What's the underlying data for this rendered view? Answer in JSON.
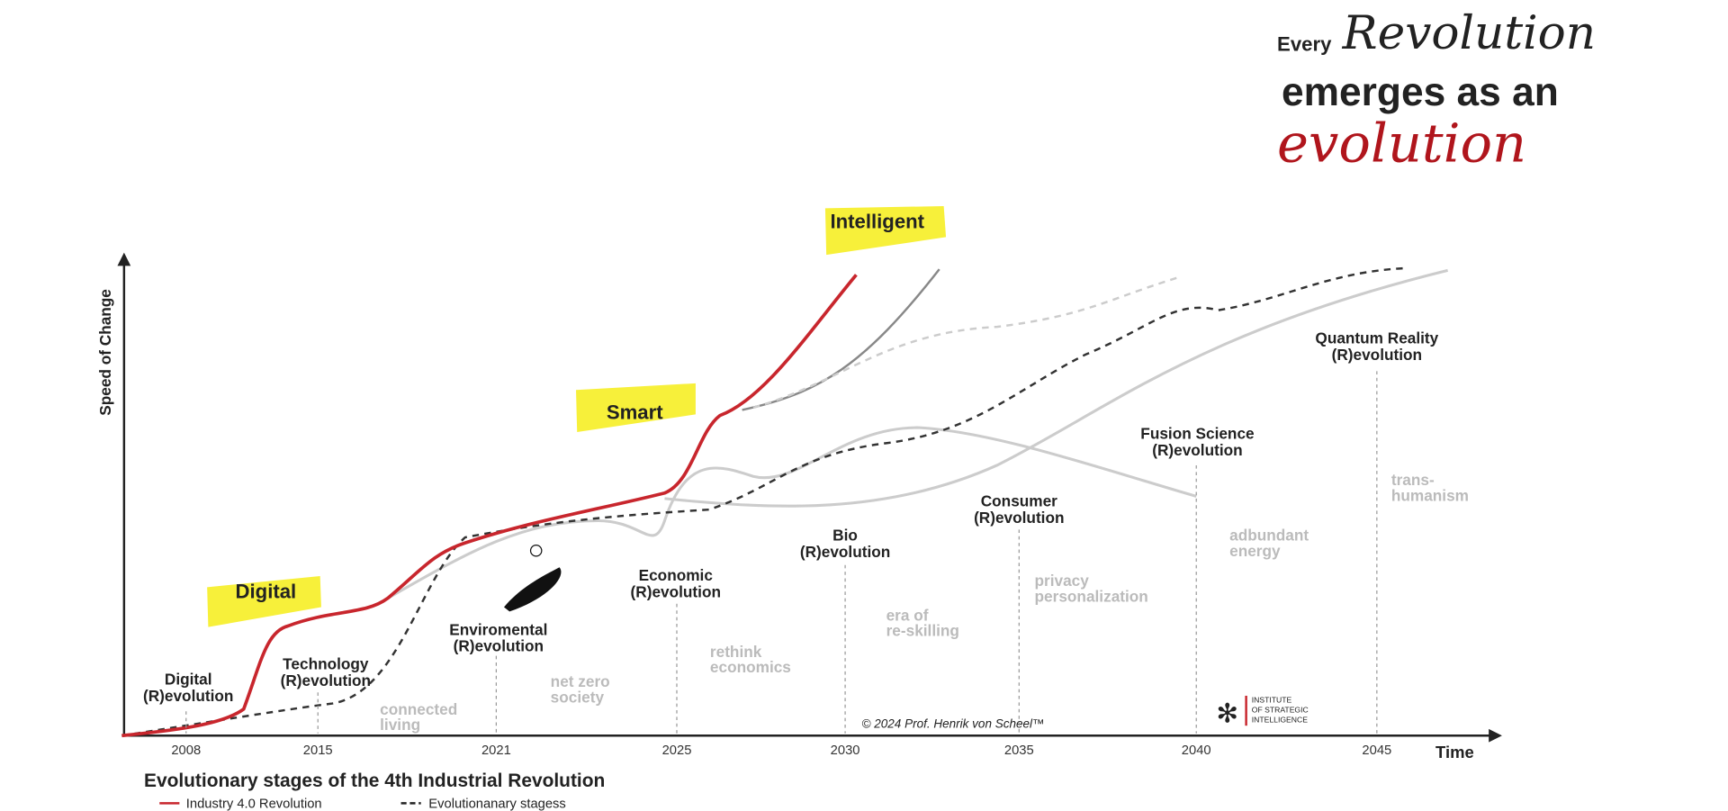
{
  "header": {
    "every": "Every",
    "revolution": "Revolution",
    "middle": "emerges as an",
    "evolution": "evolution"
  },
  "highlights": {
    "intelligent": "Intelligent",
    "smart": "Smart",
    "digital": "Digital"
  },
  "axes": {
    "y_label": "Speed of Change",
    "x_label": "Time",
    "years": [
      "2008",
      "2015",
      "2021",
      "2025",
      "2030",
      "2035",
      "2040",
      "2045"
    ]
  },
  "stages": [
    {
      "label": [
        "Digital",
        "(R)evolution"
      ]
    },
    {
      "label": [
        "Technology",
        "(R)evolution"
      ],
      "note": [
        "connected",
        "living"
      ]
    },
    {
      "label": [
        "Enviromental",
        "(R)evolution"
      ],
      "note": [
        "net zero",
        "society"
      ]
    },
    {
      "label": [
        "Economic",
        "(R)evolution"
      ],
      "note": [
        "rethink",
        "economics"
      ]
    },
    {
      "label": [
        "Bio",
        "(R)evolution"
      ],
      "note": [
        "era of",
        "re-skilling"
      ]
    },
    {
      "label": [
        "Consumer",
        "(R)evolution"
      ],
      "note": [
        "privacy",
        "personalization"
      ]
    },
    {
      "label": [
        "Fusion Science",
        "(R)evolution"
      ],
      "note": [
        "adbundant",
        "energy"
      ]
    },
    {
      "label": [
        "Quantum Reality",
        "(R)evolution"
      ],
      "note": [
        "trans-",
        "humanism"
      ]
    }
  ],
  "copyright": "© 2024 Prof. Henrik von Scheel™",
  "institute": [
    "INSTITUTE",
    "OF STRATEGIC",
    "INTELLIGENCE"
  ],
  "footer": {
    "title": "Evolutionary stages of the 4th Industrial Revolution",
    "legend": [
      "Industry 4.0 Revolution",
      "Evolutionanary stagess"
    ]
  }
}
